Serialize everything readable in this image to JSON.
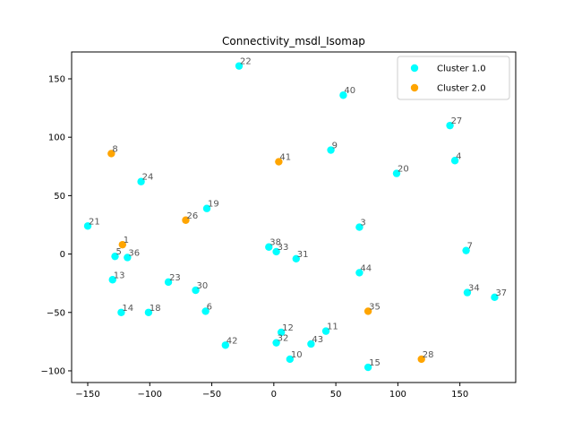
{
  "chart_data": {
    "type": "scatter",
    "title": "Connectivity_msdl_Isomap",
    "xlabel": "",
    "ylabel": "",
    "xlim": [
      -163,
      195
    ],
    "ylim": [
      -110,
      173
    ],
    "xticks": [
      -150,
      -100,
      -50,
      0,
      50,
      100,
      150
    ],
    "yticks": [
      -100,
      -50,
      0,
      50,
      100,
      150
    ],
    "grid": false,
    "legend_position": "top-right",
    "series": [
      {
        "name": "Cluster 1.0",
        "color": "#00ffff",
        "points": [
          {
            "id": "22",
            "x": -28,
            "y": 161
          },
          {
            "id": "40",
            "x": 56,
            "y": 136
          },
          {
            "id": "27",
            "x": 142,
            "y": 110
          },
          {
            "id": "4",
            "x": 146,
            "y": 80
          },
          {
            "id": "9",
            "x": 46,
            "y": 89
          },
          {
            "id": "20",
            "x": 99,
            "y": 69
          },
          {
            "id": "24",
            "x": -107,
            "y": 62
          },
          {
            "id": "19",
            "x": -54,
            "y": 39
          },
          {
            "id": "21",
            "x": -150,
            "y": 24
          },
          {
            "id": "3",
            "x": 69,
            "y": 23
          },
          {
            "id": "7",
            "x": 155,
            "y": 3
          },
          {
            "id": "38",
            "x": -4,
            "y": 6
          },
          {
            "id": "33",
            "x": 2,
            "y": 2
          },
          {
            "id": "31",
            "x": 18,
            "y": -4
          },
          {
            "id": "5",
            "x": -128,
            "y": -2
          },
          {
            "id": "36",
            "x": -118,
            "y": -3
          },
          {
            "id": "44",
            "x": 69,
            "y": -16
          },
          {
            "id": "13",
            "x": -130,
            "y": -22
          },
          {
            "id": "23",
            "x": -85,
            "y": -24
          },
          {
            "id": "30",
            "x": -63,
            "y": -31
          },
          {
            "id": "34",
            "x": 156,
            "y": -33
          },
          {
            "id": "37",
            "x": 178,
            "y": -37
          },
          {
            "id": "14",
            "x": -123,
            "y": -50
          },
          {
            "id": "18",
            "x": -101,
            "y": -50
          },
          {
            "id": "6",
            "x": -55,
            "y": -49
          },
          {
            "id": "12",
            "x": 6,
            "y": -67
          },
          {
            "id": "11",
            "x": 42,
            "y": -66
          },
          {
            "id": "32",
            "x": 2,
            "y": -76
          },
          {
            "id": "43",
            "x": 30,
            "y": -77
          },
          {
            "id": "42",
            "x": -39,
            "y": -78
          },
          {
            "id": "10",
            "x": 13,
            "y": -90
          },
          {
            "id": "15",
            "x": 76,
            "y": -97
          }
        ]
      },
      {
        "name": "Cluster 2.0",
        "color": "#ffa500",
        "points": [
          {
            "id": "8",
            "x": -131,
            "y": 86
          },
          {
            "id": "41",
            "x": 4,
            "y": 79
          },
          {
            "id": "26",
            "x": -71,
            "y": 29
          },
          {
            "id": "1",
            "x": -122,
            "y": 8
          },
          {
            "id": "35",
            "x": 76,
            "y": -49
          },
          {
            "id": "28",
            "x": 119,
            "y": -90
          }
        ]
      }
    ]
  }
}
